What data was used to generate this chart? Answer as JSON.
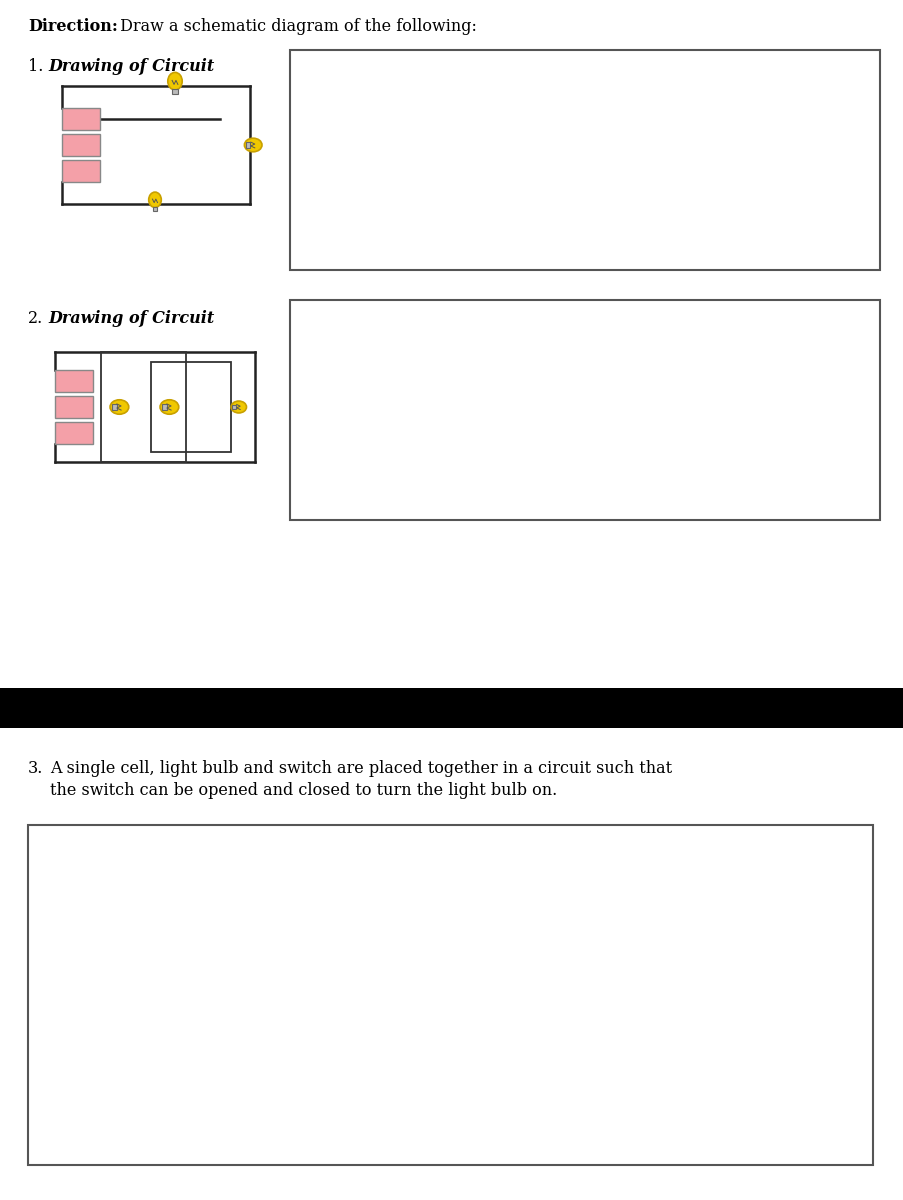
{
  "bg_color": "#ffffff",
  "pink_color": "#f4a0a8",
  "yellow_color": "#f0c800",
  "yellow_dark": "#c8a000",
  "wire_color": "#222222",
  "box_edge_color": "#444444",
  "black_bar_color": "#000000",
  "direction_bold": "Direction:",
  "direction_rest": " Draw a schematic diagram of the following:",
  "item1_num": "1.",
  "item1_text": "  Drawing of Circuit",
  "item2_num": "2.",
  "item2_text": "  Drawing of Circuit",
  "item3_num": "3.",
  "item3_line1": "  A single cell, light bulb and switch are placed together in a circuit such that",
  "item3_line2": "  the switch can be opened and closed to turn the light bulb on."
}
